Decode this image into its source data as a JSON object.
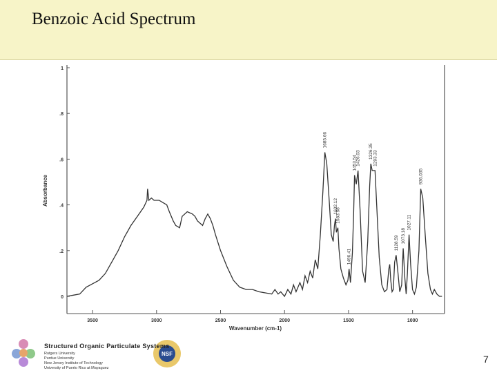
{
  "slide": {
    "title": "Benzoic Acid Spectrum",
    "number": "7"
  },
  "footer": {
    "org_name": "Structured Organic Particulate Systems",
    "universities": [
      "Rutgers University",
      "Purdue University",
      "New Jersey Institute of Technology",
      "University of Puerto Rico at Mayaguez"
    ],
    "nsf_text": "NSF"
  },
  "chart_data": {
    "type": "line",
    "title": "",
    "xlabel": "Wavenumber (cm-1)",
    "ylabel": "Absorbance",
    "xlim": [
      3700,
      750
    ],
    "ylim": [
      0,
      1
    ],
    "x_reversed": true,
    "grid": false,
    "x_ticks": [
      3500,
      3000,
      2500,
      2000,
      1500,
      1000
    ],
    "y_ticks": [
      {
        "value": 0,
        "label": "0"
      },
      {
        "value": 0.2,
        "label": ".2"
      },
      {
        "value": 0.4,
        "label": ".4"
      },
      {
        "value": 0.6,
        "label": ".6"
      },
      {
        "value": 0.8,
        "label": ".8"
      },
      {
        "value": 1,
        "label": "1"
      }
    ],
    "series": [
      {
        "x": [
          3700,
          3650,
          3600,
          3550,
          3500,
          3450,
          3400,
          3350,
          3300,
          3250,
          3200,
          3150,
          3100,
          3075,
          3070,
          3060,
          3040,
          3020,
          3000,
          2980,
          2950,
          2920,
          2900,
          2870,
          2850,
          2820,
          2800,
          2760,
          2720,
          2700,
          2680,
          2660,
          2640,
          2620,
          2600,
          2580,
          2560,
          2540,
          2500,
          2450,
          2400,
          2350,
          2300,
          2250,
          2200,
          2150,
          2100,
          2075,
          2050,
          2030,
          2000,
          1975,
          1950,
          1930,
          1910,
          1880,
          1860,
          1840,
          1820,
          1800,
          1780,
          1760,
          1740,
          1720,
          1700,
          1685,
          1670,
          1650,
          1635,
          1620,
          1610,
          1602,
          1595,
          1583,
          1575,
          1560,
          1540,
          1520,
          1505,
          1496,
          1485,
          1470,
          1460,
          1453,
          1440,
          1426,
          1410,
          1390,
          1370,
          1350,
          1335,
          1326,
          1315,
          1293,
          1280,
          1260,
          1240,
          1220,
          1200,
          1185,
          1178,
          1170,
          1160,
          1150,
          1140,
          1128,
          1115,
          1100,
          1085,
          1073,
          1060,
          1050,
          1040,
          1027,
          1015,
          1000,
          985,
          970,
          950,
          936,
          920,
          900,
          880,
          860,
          845,
          830,
          810,
          790,
          770
        ],
        "y": [
          0,
          0.005,
          0.01,
          0.04,
          0.055,
          0.07,
          0.1,
          0.15,
          0.2,
          0.26,
          0.31,
          0.35,
          0.39,
          0.42,
          0.47,
          0.42,
          0.43,
          0.42,
          0.42,
          0.42,
          0.41,
          0.4,
          0.37,
          0.33,
          0.31,
          0.3,
          0.35,
          0.37,
          0.36,
          0.35,
          0.33,
          0.32,
          0.31,
          0.34,
          0.36,
          0.34,
          0.31,
          0.27,
          0.2,
          0.13,
          0.07,
          0.04,
          0.03,
          0.03,
          0.02,
          0.015,
          0.01,
          0.03,
          0.01,
          0.02,
          0.0,
          0.03,
          0.01,
          0.05,
          0.02,
          0.06,
          0.03,
          0.09,
          0.06,
          0.11,
          0.08,
          0.16,
          0.12,
          0.27,
          0.46,
          0.63,
          0.58,
          0.41,
          0.27,
          0.24,
          0.31,
          0.34,
          0.28,
          0.3,
          0.21,
          0.12,
          0.08,
          0.05,
          0.07,
          0.12,
          0.06,
          0.19,
          0.36,
          0.53,
          0.49,
          0.55,
          0.38,
          0.11,
          0.06,
          0.24,
          0.48,
          0.58,
          0.55,
          0.55,
          0.4,
          0.17,
          0.05,
          0.02,
          0.03,
          0.12,
          0.14,
          0.07,
          0.02,
          0.03,
          0.15,
          0.18,
          0.11,
          0.02,
          0.05,
          0.21,
          0.08,
          0.01,
          0.1,
          0.27,
          0.14,
          0.03,
          0.01,
          0.04,
          0.2,
          0.47,
          0.43,
          0.26,
          0.1,
          0.03,
          0.01,
          0.03,
          0.01,
          0.0,
          0.0
        ]
      }
    ],
    "peak_labels": [
      {
        "x": 1685.66,
        "y": 0.63,
        "label": "1685.66"
      },
      {
        "x": 1602.12,
        "y": 0.34,
        "label": "1602.12"
      },
      {
        "x": 1583.58,
        "y": 0.3,
        "label": "1583.58"
      },
      {
        "x": 1496.41,
        "y": 0.12,
        "label": "1496.41"
      },
      {
        "x": 1453.54,
        "y": 0.53,
        "label": "1453.54"
      },
      {
        "x": 1426.03,
        "y": 0.55,
        "label": "1426.03"
      },
      {
        "x": 1326.35,
        "y": 0.58,
        "label": "1326.35"
      },
      {
        "x": 1293.33,
        "y": 0.55,
        "label": "1293.33"
      },
      {
        "x": 1128.59,
        "y": 0.18,
        "label": "1128.59"
      },
      {
        "x": 1073.18,
        "y": 0.21,
        "label": "1073.18"
      },
      {
        "x": 1027.11,
        "y": 0.27,
        "label": "1027.11"
      },
      {
        "x": 936.035,
        "y": 0.47,
        "label": "936.035"
      }
    ],
    "line_color": "#333333"
  }
}
